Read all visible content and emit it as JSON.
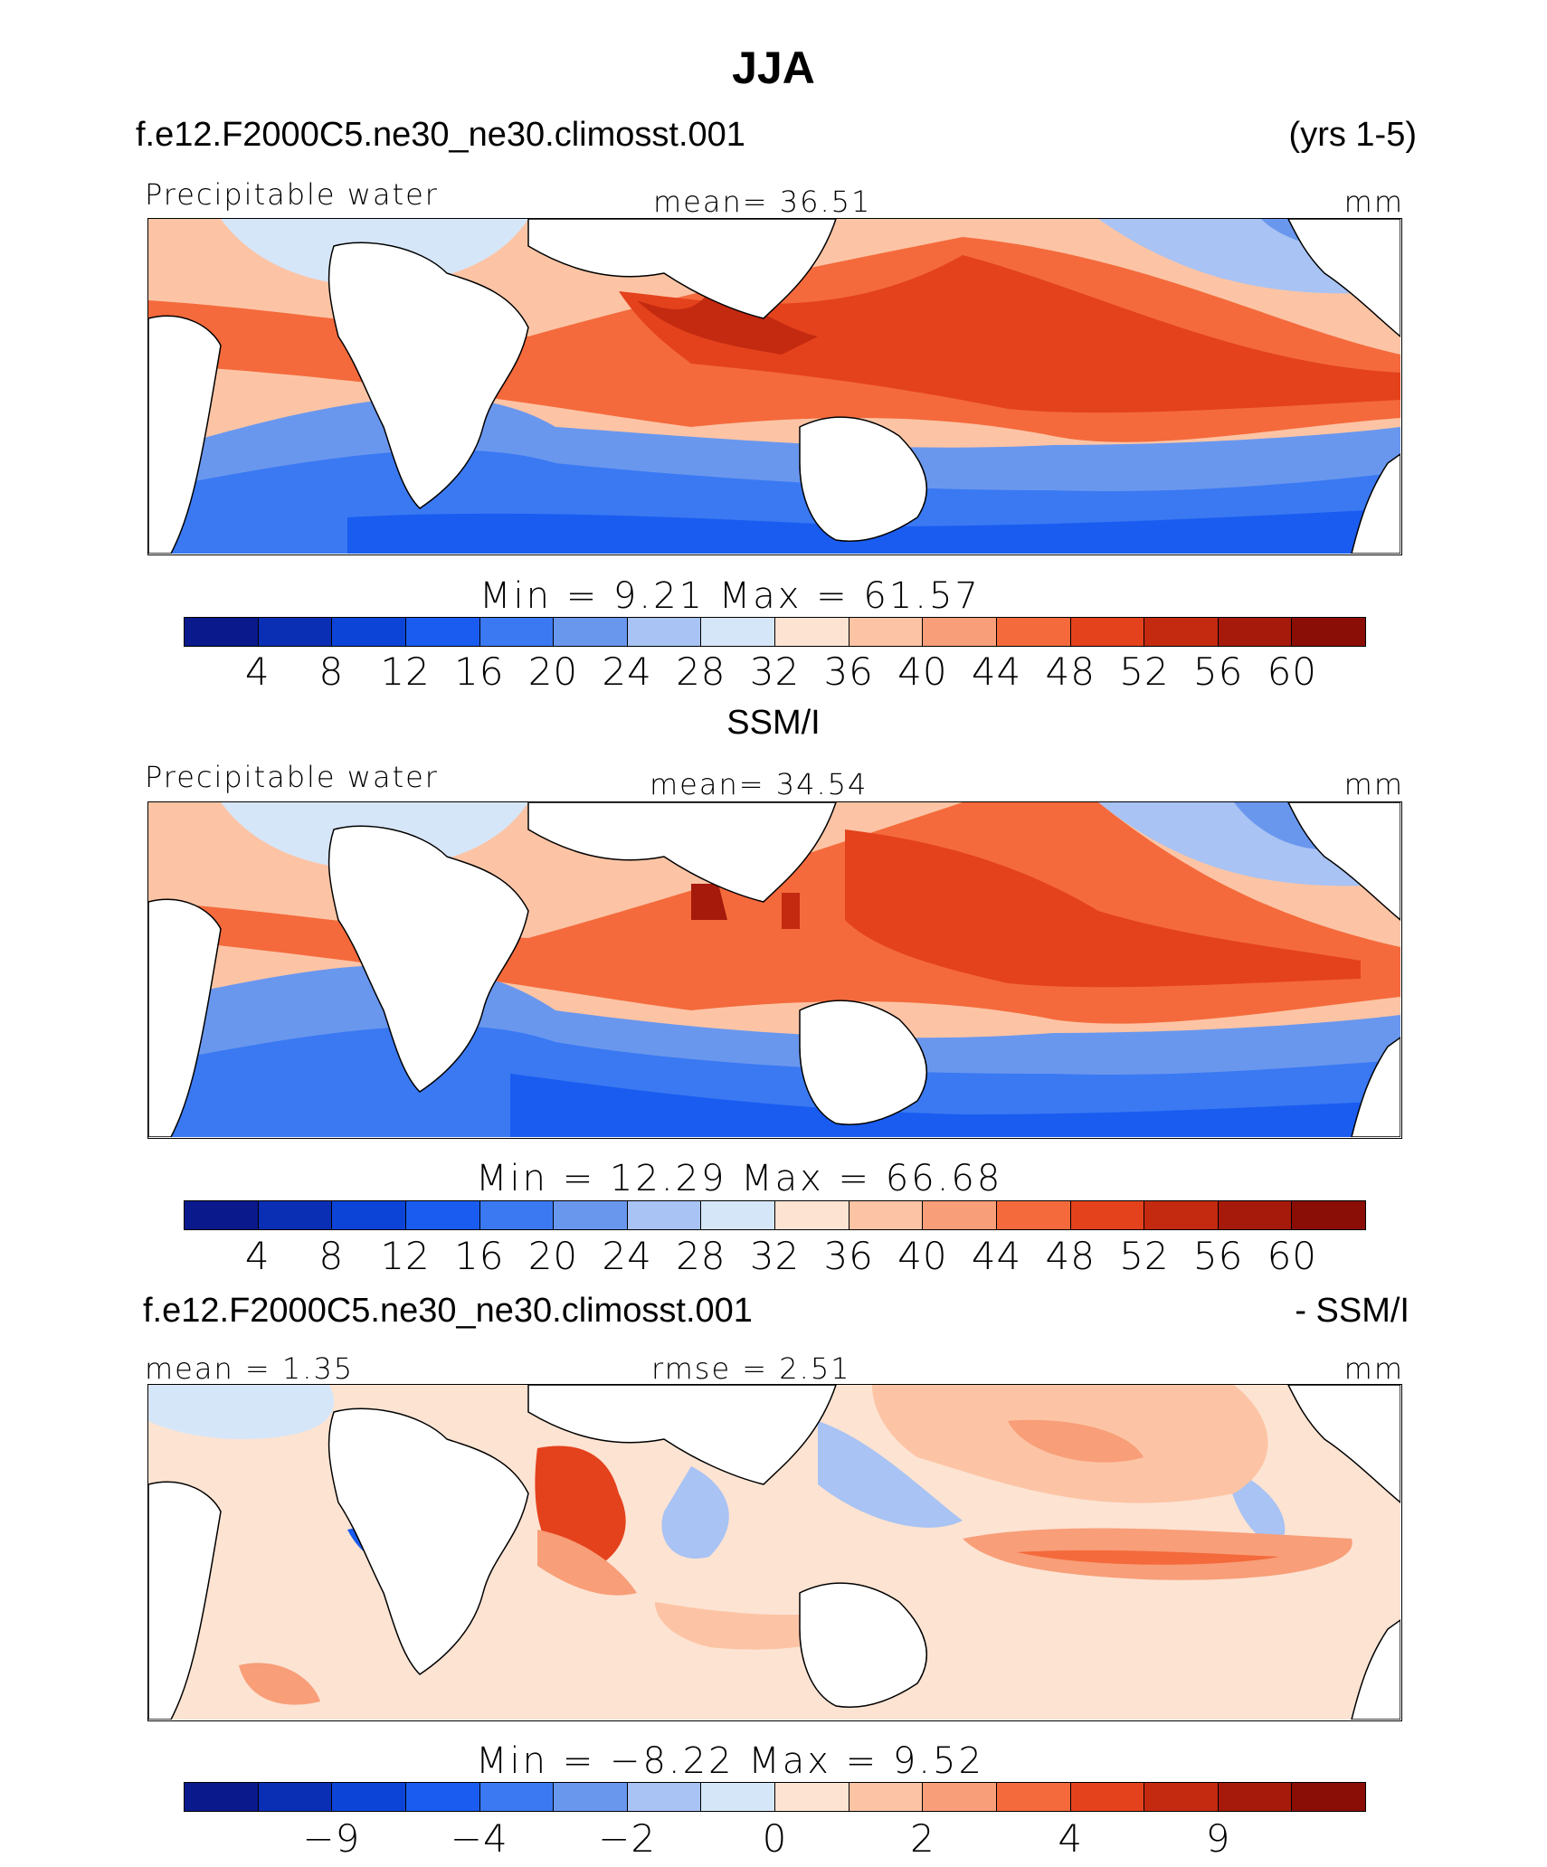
{
  "page": {
    "season": "JJA",
    "model_case": "f.e12.F2000C5.ne30_ne30.climosst.001",
    "years": "(yrs 1-5)"
  },
  "panels": [
    {
      "id": "model",
      "variable": "Precipitable water",
      "stat_text": "mean=   36.51",
      "units": "mm",
      "min_max_text": "Min  =     9.21  Max  =    61.57",
      "colorbar_labels": [
        "4",
        "8",
        "12",
        "16",
        "20",
        "24",
        "28",
        "32",
        "36",
        "40",
        "44",
        "48",
        "52",
        "56",
        "60"
      ]
    },
    {
      "id": "obs",
      "header": "SSM/I",
      "variable": "Precipitable water",
      "stat_text": "mean=   34.54",
      "units": "mm",
      "min_max_text": "Min  =   12.29  Max  =    66.68",
      "colorbar_labels": [
        "4",
        "8",
        "12",
        "16",
        "20",
        "24",
        "28",
        "32",
        "36",
        "40",
        "44",
        "48",
        "52",
        "56",
        "60"
      ]
    },
    {
      "id": "diff",
      "header_left": "f.e12.F2000C5.ne30_ne30.climosst.001",
      "header_right": "- SSM/I",
      "mean_text": "mean =     1.35",
      "rmse_text": "rmse =     2.51",
      "units": "mm",
      "min_max_text": "Min  =   −8.22  Max  =     9.52",
      "colorbar_labels": [
        "−9",
        "−4",
        "−2",
        "0",
        "2",
        "4",
        "9"
      ]
    }
  ],
  "colors": {
    "palette": [
      "#0a1a8c",
      "#0a2fb4",
      "#0d44d8",
      "#1a5cf0",
      "#3a79f2",
      "#6a97ee",
      "#a8c3f4",
      "#d6e6f9",
      "#fde3d2",
      "#fcc4a5",
      "#f89e78",
      "#f46a3c",
      "#e4421c",
      "#c42a10",
      "#a51a0a",
      "#8a0e06"
    ]
  }
}
